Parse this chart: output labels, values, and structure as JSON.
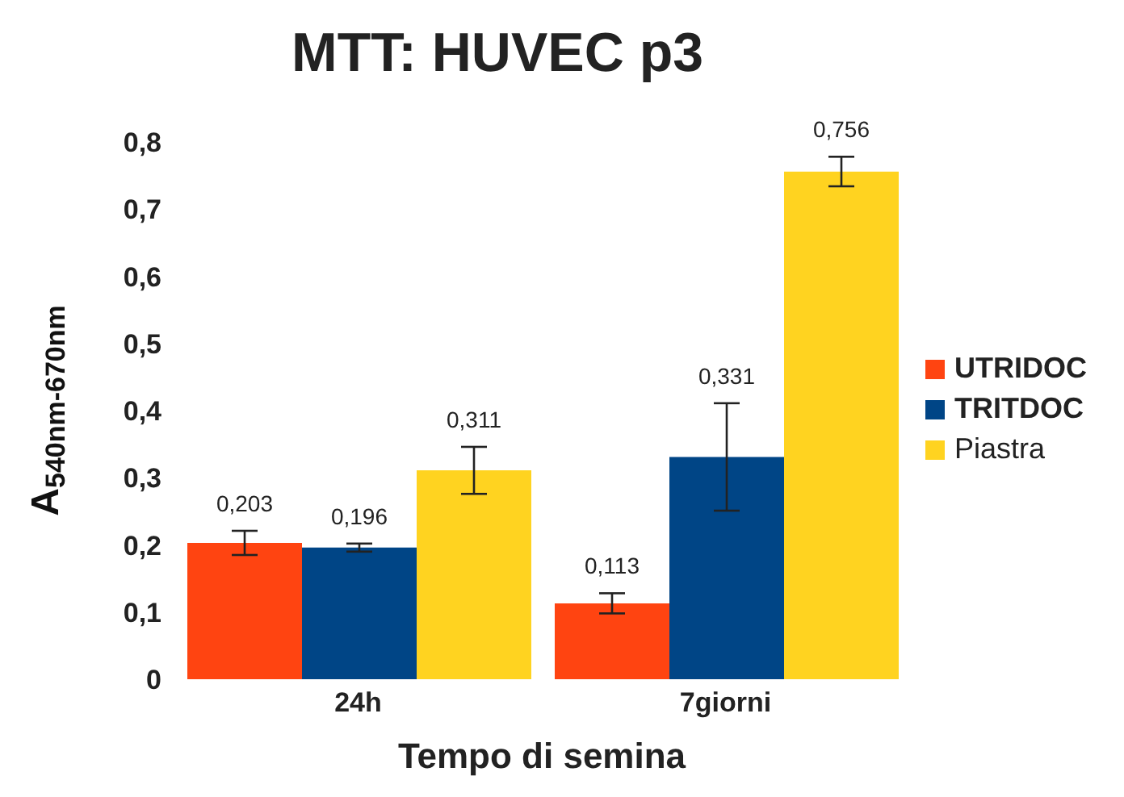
{
  "chart_data": {
    "type": "bar",
    "title": "MTT: HUVEC p3",
    "xlabel": "Tempo di semina",
    "ylabel": "A$_{540nm-670nm}$",
    "categories": [
      "24h",
      "7giorni"
    ],
    "series": [
      {
        "name": "UTRIDOC",
        "color": "#ff4411",
        "values": [
          0.203,
          0.113
        ],
        "errors": [
          0.018,
          0.015
        ],
        "value_labels": [
          "0,203",
          "0,113"
        ]
      },
      {
        "name": "TRITDOC",
        "color": "#004586",
        "values": [
          0.196,
          0.331
        ],
        "errors": [
          0.006,
          0.08
        ],
        "value_labels": [
          "0,196",
          "0,331"
        ]
      },
      {
        "name": "Piastra",
        "color": "#ffd320",
        "values": [
          0.311,
          0.756
        ],
        "errors": [
          0.035,
          0.022
        ],
        "value_labels": [
          "0,311",
          "0,756"
        ]
      }
    ],
    "ylim": [
      0,
      0.8
    ],
    "yticks": [
      {
        "value": 0,
        "label": "0"
      },
      {
        "value": 0.1,
        "label": "0,1"
      },
      {
        "value": 0.2,
        "label": "0,2"
      },
      {
        "value": 0.3,
        "label": "0,3"
      },
      {
        "value": 0.4,
        "label": "0,4"
      },
      {
        "value": 0.5,
        "label": "0,5"
      },
      {
        "value": 0.6,
        "label": "0,6"
      },
      {
        "value": 0.7,
        "label": "0,7"
      },
      {
        "value": 0.8,
        "label": "0,8"
      }
    ],
    "grid": false,
    "legend": "right"
  }
}
